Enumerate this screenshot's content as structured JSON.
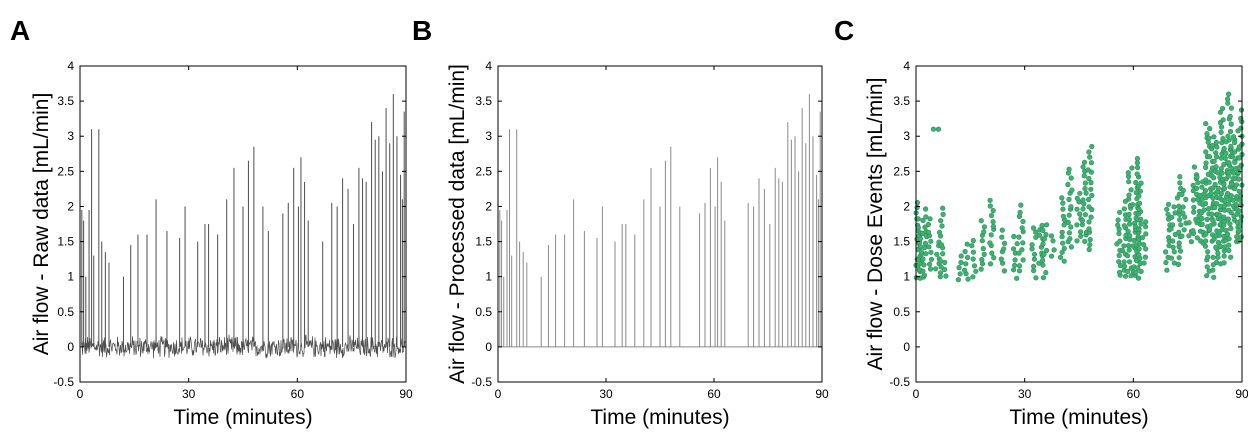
{
  "colors": {
    "raw_trace": "#4d4d4d",
    "processed_spike": "#8a8a8a",
    "dose_point": "#3cb371",
    "dose_point_edge": "#2e8b57",
    "axis": "#000000"
  },
  "chart_data": [
    {
      "type": "line",
      "panel_label": "A",
      "xlabel": "Time (minutes)",
      "ylabel": "Air flow - Raw data [mL/min]",
      "xlim": [
        0,
        90
      ],
      "ylim": [
        -0.5,
        4
      ],
      "xticks": [
        0,
        30,
        60,
        90
      ],
      "yticks": [
        -0.5,
        0,
        0.5,
        1,
        1.5,
        2,
        2.5,
        3,
        3.5,
        4
      ],
      "ytick_labels": [
        "-0.5",
        "0",
        "0.5",
        "1",
        "1.5",
        "2",
        "2.5",
        "3",
        "3.5",
        "4"
      ],
      "grid": false,
      "baseline_noise_amplitude": 0.15,
      "spikes": [
        {
          "x": 0.5,
          "y": 1.95
        },
        {
          "x": 1.0,
          "y": 1.8
        },
        {
          "x": 1.6,
          "y": 1.0
        },
        {
          "x": 2.5,
          "y": 1.95
        },
        {
          "x": 3.2,
          "y": 3.1
        },
        {
          "x": 3.8,
          "y": 1.3
        },
        {
          "x": 5.2,
          "y": 3.1
        },
        {
          "x": 6.0,
          "y": 1.5
        },
        {
          "x": 7.0,
          "y": 1.35
        },
        {
          "x": 8.0,
          "y": 1.2
        },
        {
          "x": 12.0,
          "y": 1.0
        },
        {
          "x": 14.0,
          "y": 1.45
        },
        {
          "x": 16.0,
          "y": 1.6
        },
        {
          "x": 18.5,
          "y": 1.6
        },
        {
          "x": 21.0,
          "y": 2.1
        },
        {
          "x": 24.0,
          "y": 1.65
        },
        {
          "x": 27.5,
          "y": 1.55
        },
        {
          "x": 29.0,
          "y": 2.0
        },
        {
          "x": 32.5,
          "y": 1.5
        },
        {
          "x": 34.5,
          "y": 1.75
        },
        {
          "x": 35.5,
          "y": 1.75
        },
        {
          "x": 38.0,
          "y": 1.6
        },
        {
          "x": 40.5,
          "y": 2.1
        },
        {
          "x": 42.5,
          "y": 2.55
        },
        {
          "x": 45.0,
          "y": 2.0
        },
        {
          "x": 46.5,
          "y": 2.65
        },
        {
          "x": 48.0,
          "y": 2.85
        },
        {
          "x": 50.5,
          "y": 2.0
        },
        {
          "x": 52.0,
          "y": 1.65
        },
        {
          "x": 56.0,
          "y": 1.9
        },
        {
          "x": 57.5,
          "y": 2.05
        },
        {
          "x": 59.0,
          "y": 2.55
        },
        {
          "x": 60.3,
          "y": 2.0
        },
        {
          "x": 61.0,
          "y": 2.7
        },
        {
          "x": 62.0,
          "y": 2.35
        },
        {
          "x": 63.0,
          "y": 1.8
        },
        {
          "x": 67.0,
          "y": 1.5
        },
        {
          "x": 69.5,
          "y": 2.05
        },
        {
          "x": 71.0,
          "y": 2.0
        },
        {
          "x": 72.5,
          "y": 2.4
        },
        {
          "x": 74.0,
          "y": 2.25
        },
        {
          "x": 75.5,
          "y": 1.75
        },
        {
          "x": 77.0,
          "y": 2.55
        },
        {
          "x": 78.0,
          "y": 2.4
        },
        {
          "x": 79.0,
          "y": 2.35
        },
        {
          "x": 80.5,
          "y": 3.2
        },
        {
          "x": 81.5,
          "y": 2.95
        },
        {
          "x": 82.5,
          "y": 3.0
        },
        {
          "x": 83.5,
          "y": 2.5
        },
        {
          "x": 84.5,
          "y": 3.4
        },
        {
          "x": 85.5,
          "y": 2.9
        },
        {
          "x": 86.5,
          "y": 3.6
        },
        {
          "x": 87.5,
          "y": 3.0
        },
        {
          "x": 88.5,
          "y": 2.45
        },
        {
          "x": 89.0,
          "y": 2.1
        },
        {
          "x": 89.5,
          "y": 3.35
        }
      ]
    },
    {
      "type": "line",
      "panel_label": "B",
      "xlabel": "Time (minutes)",
      "ylabel": "Air flow - Processed data [mL/min]",
      "xlim": [
        0,
        90
      ],
      "ylim": [
        -0.5,
        4
      ],
      "xticks": [
        0,
        30,
        60,
        90
      ],
      "yticks": [
        -0.5,
        0,
        0.5,
        1,
        1.5,
        2,
        2.5,
        3,
        3.5,
        4
      ],
      "ytick_labels": [
        "-0.5",
        "0",
        "0.5",
        "1",
        "1.5",
        "2",
        "2.5",
        "3",
        "3.5",
        "4"
      ],
      "grid": false,
      "spikes": [
        {
          "x": 0.5,
          "y": 1.95
        },
        {
          "x": 1.0,
          "y": 1.8
        },
        {
          "x": 1.6,
          "y": 1.0
        },
        {
          "x": 2.5,
          "y": 1.95
        },
        {
          "x": 3.2,
          "y": 3.1
        },
        {
          "x": 3.8,
          "y": 1.3
        },
        {
          "x": 5.2,
          "y": 3.1
        },
        {
          "x": 6.0,
          "y": 1.5
        },
        {
          "x": 7.0,
          "y": 1.35
        },
        {
          "x": 8.0,
          "y": 1.2
        },
        {
          "x": 12.0,
          "y": 1.0
        },
        {
          "x": 14.0,
          "y": 1.45
        },
        {
          "x": 16.0,
          "y": 1.6
        },
        {
          "x": 18.5,
          "y": 1.6
        },
        {
          "x": 21.0,
          "y": 2.1
        },
        {
          "x": 24.0,
          "y": 1.65
        },
        {
          "x": 27.5,
          "y": 1.55
        },
        {
          "x": 29.0,
          "y": 2.0
        },
        {
          "x": 32.5,
          "y": 1.5
        },
        {
          "x": 34.5,
          "y": 1.75
        },
        {
          "x": 35.5,
          "y": 1.75
        },
        {
          "x": 38.0,
          "y": 1.6
        },
        {
          "x": 40.5,
          "y": 2.1
        },
        {
          "x": 42.5,
          "y": 2.55
        },
        {
          "x": 45.0,
          "y": 2.0
        },
        {
          "x": 46.5,
          "y": 2.65
        },
        {
          "x": 48.0,
          "y": 2.85
        },
        {
          "x": 50.5,
          "y": 2.0
        },
        {
          "x": 56.0,
          "y": 1.9
        },
        {
          "x": 57.5,
          "y": 2.05
        },
        {
          "x": 59.0,
          "y": 2.55
        },
        {
          "x": 60.3,
          "y": 2.0
        },
        {
          "x": 61.0,
          "y": 2.7
        },
        {
          "x": 62.0,
          "y": 2.35
        },
        {
          "x": 63.0,
          "y": 1.8
        },
        {
          "x": 69.5,
          "y": 2.05
        },
        {
          "x": 71.0,
          "y": 2.0
        },
        {
          "x": 72.5,
          "y": 2.4
        },
        {
          "x": 74.0,
          "y": 2.25
        },
        {
          "x": 75.5,
          "y": 1.75
        },
        {
          "x": 77.0,
          "y": 2.55
        },
        {
          "x": 78.0,
          "y": 2.4
        },
        {
          "x": 79.0,
          "y": 2.35
        },
        {
          "x": 80.5,
          "y": 3.2
        },
        {
          "x": 81.5,
          "y": 2.95
        },
        {
          "x": 82.5,
          "y": 3.0
        },
        {
          "x": 83.5,
          "y": 2.5
        },
        {
          "x": 84.5,
          "y": 3.4
        },
        {
          "x": 85.5,
          "y": 2.9
        },
        {
          "x": 86.5,
          "y": 3.6
        },
        {
          "x": 87.5,
          "y": 3.0
        },
        {
          "x": 88.5,
          "y": 2.45
        },
        {
          "x": 89.0,
          "y": 2.1
        },
        {
          "x": 89.5,
          "y": 3.35
        }
      ]
    },
    {
      "type": "scatter",
      "panel_label": "C",
      "xlabel": "Time (minutes)",
      "ylabel": "Air flow - Dose Events [mL/min]",
      "xlim": [
        0,
        90
      ],
      "ylim": [
        -0.5,
        4
      ],
      "xticks": [
        0,
        30,
        60,
        90
      ],
      "yticks": [
        -0.5,
        0,
        0.5,
        1,
        1.5,
        2,
        2.5,
        3,
        3.5,
        4
      ],
      "ytick_labels": [
        "-0.5",
        "0",
        "0.5",
        "1",
        "1.5",
        "2",
        "2.5",
        "3",
        "3.5",
        "4"
      ],
      "grid": false,
      "clusters": [
        {
          "x": 0.5,
          "ymin": 1.0,
          "ymax": 2.05
        },
        {
          "x": 1.0,
          "ymin": 1.0,
          "ymax": 1.8
        },
        {
          "x": 1.6,
          "ymin": 1.0,
          "ymax": 1.6
        },
        {
          "x": 2.5,
          "ymin": 1.0,
          "ymax": 1.95
        },
        {
          "x": 3.8,
          "ymin": 1.1,
          "ymax": 1.8
        },
        {
          "x": 6.0,
          "ymin": 1.1,
          "ymax": 1.5
        },
        {
          "x": 7.0,
          "ymin": 1.0,
          "ymax": 1.95
        },
        {
          "x": 8.0,
          "ymin": 1.0,
          "ymax": 1.2
        },
        {
          "x": 12.0,
          "ymin": 0.95,
          "ymax": 1.3
        },
        {
          "x": 14.0,
          "ymin": 0.95,
          "ymax": 1.45
        },
        {
          "x": 16.0,
          "ymin": 1.0,
          "ymax": 1.5
        },
        {
          "x": 18.5,
          "ymin": 1.1,
          "ymax": 1.8
        },
        {
          "x": 21.0,
          "ymin": 1.2,
          "ymax": 2.1
        },
        {
          "x": 24.0,
          "ymin": 1.1,
          "ymax": 1.65
        },
        {
          "x": 27.5,
          "ymin": 1.0,
          "ymax": 1.55
        },
        {
          "x": 29.0,
          "ymin": 1.1,
          "ymax": 2.0
        },
        {
          "x": 32.5,
          "ymin": 1.0,
          "ymax": 1.7
        },
        {
          "x": 34.5,
          "ymin": 1.2,
          "ymax": 1.75
        },
        {
          "x": 35.5,
          "ymin": 1.0,
          "ymax": 1.75
        },
        {
          "x": 38.0,
          "ymin": 1.3,
          "ymax": 1.6
        },
        {
          "x": 40.5,
          "ymin": 1.2,
          "ymax": 2.1
        },
        {
          "x": 42.5,
          "ymin": 1.4,
          "ymax": 2.55
        },
        {
          "x": 45.0,
          "ymin": 1.5,
          "ymax": 2.2
        },
        {
          "x": 46.5,
          "ymin": 1.5,
          "ymax": 2.65
        },
        {
          "x": 48.0,
          "ymin": 1.4,
          "ymax": 2.85
        },
        {
          "x": 56.0,
          "ymin": 1.0,
          "ymax": 1.9
        },
        {
          "x": 57.5,
          "ymin": 1.0,
          "ymax": 2.05
        },
        {
          "x": 59.0,
          "ymin": 1.0,
          "ymax": 2.55
        },
        {
          "x": 60.3,
          "ymin": 1.0,
          "ymax": 2.0
        },
        {
          "x": 61.0,
          "ymin": 1.0,
          "ymax": 2.7
        },
        {
          "x": 62.0,
          "ymin": 1.1,
          "ymax": 2.35
        },
        {
          "x": 63.0,
          "ymin": 1.2,
          "ymax": 1.8
        },
        {
          "x": 69.5,
          "ymin": 1.1,
          "ymax": 2.05
        },
        {
          "x": 71.0,
          "ymin": 1.2,
          "ymax": 2.0
        },
        {
          "x": 72.5,
          "ymin": 1.2,
          "ymax": 2.4
        },
        {
          "x": 74.0,
          "ymin": 1.6,
          "ymax": 2.25
        },
        {
          "x": 75.5,
          "ymin": 1.5,
          "ymax": 1.75
        },
        {
          "x": 77.0,
          "ymin": 1.6,
          "ymax": 2.55
        },
        {
          "x": 78.0,
          "ymin": 1.5,
          "ymax": 2.4
        },
        {
          "x": 79.0,
          "ymin": 1.5,
          "ymax": 2.35
        },
        {
          "x": 80.5,
          "ymin": 1.0,
          "ymax": 3.2
        },
        {
          "x": 81.5,
          "ymin": 1.5,
          "ymax": 2.95
        },
        {
          "x": 82.5,
          "ymin": 1.0,
          "ymax": 3.0
        },
        {
          "x": 83.5,
          "ymin": 1.2,
          "ymax": 2.5
        },
        {
          "x": 84.5,
          "ymin": 1.5,
          "ymax": 3.4
        },
        {
          "x": 85.5,
          "ymin": 1.2,
          "ymax": 2.9
        },
        {
          "x": 86.5,
          "ymin": 1.3,
          "ymax": 3.6
        },
        {
          "x": 87.5,
          "ymin": 1.8,
          "ymax": 3.0
        },
        {
          "x": 88.5,
          "ymin": 1.5,
          "ymax": 2.9
        },
        {
          "x": 89.5,
          "ymin": 1.5,
          "ymax": 3.35
        }
      ],
      "isolated_points": [
        {
          "x": 4.8,
          "y": 3.1
        },
        {
          "x": 6.2,
          "y": 3.1
        }
      ]
    }
  ]
}
